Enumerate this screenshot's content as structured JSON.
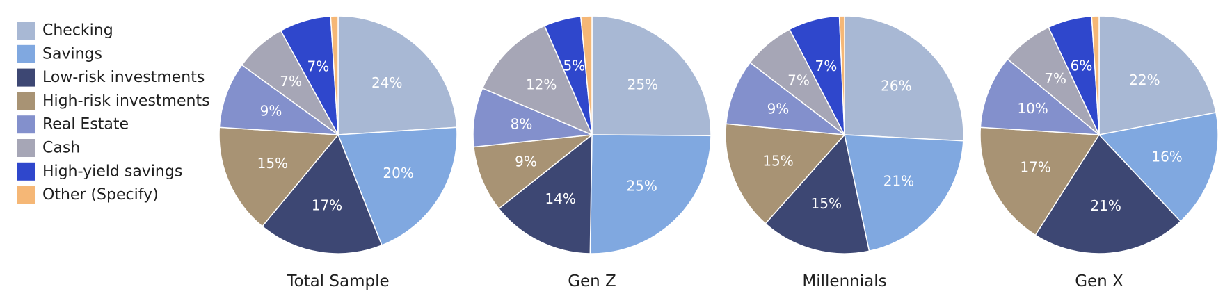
{
  "chart_data": {
    "type": "pie",
    "categories": [
      "Checking",
      "Savings",
      "Low-risk investments",
      "High-risk investments",
      "Real Estate",
      "Cash",
      "High-yield savings",
      "Other (Specify)"
    ],
    "colors": [
      "#a8b8d4",
      "#80a8e0",
      "#3d4773",
      "#a89374",
      "#8390cc",
      "#a6a6b6",
      "#2f47cc",
      "#f5b776"
    ],
    "pies": [
      {
        "title": "Total Sample",
        "values": [
          24,
          20,
          17,
          15,
          9,
          7,
          7,
          1
        ],
        "labels": [
          "24%",
          "20%",
          "17%",
          "15%",
          "9%",
          "7%",
          "7%",
          ""
        ]
      },
      {
        "title": "Gen Z",
        "values": [
          25,
          25,
          14,
          9,
          8,
          12,
          5,
          1.5
        ],
        "labels": [
          "25%",
          "25%",
          "14%",
          "9%",
          "8%",
          "12%",
          "5%",
          ""
        ]
      },
      {
        "title": "Millennials",
        "values": [
          26,
          21,
          15,
          15,
          9,
          7,
          7,
          0.7
        ],
        "labels": [
          "26%",
          "21%",
          "15%",
          "15%",
          "9%",
          "7%",
          "7%",
          ""
        ]
      },
      {
        "title": "Gen X",
        "values": [
          22,
          16,
          21,
          17,
          10,
          7,
          6,
          1
        ],
        "labels": [
          "22%",
          "16%",
          "21%",
          "17%",
          "10%",
          "7%",
          "6%",
          ""
        ]
      }
    ],
    "legend_position": "left",
    "start_angle": "top",
    "direction": "clockwise"
  }
}
